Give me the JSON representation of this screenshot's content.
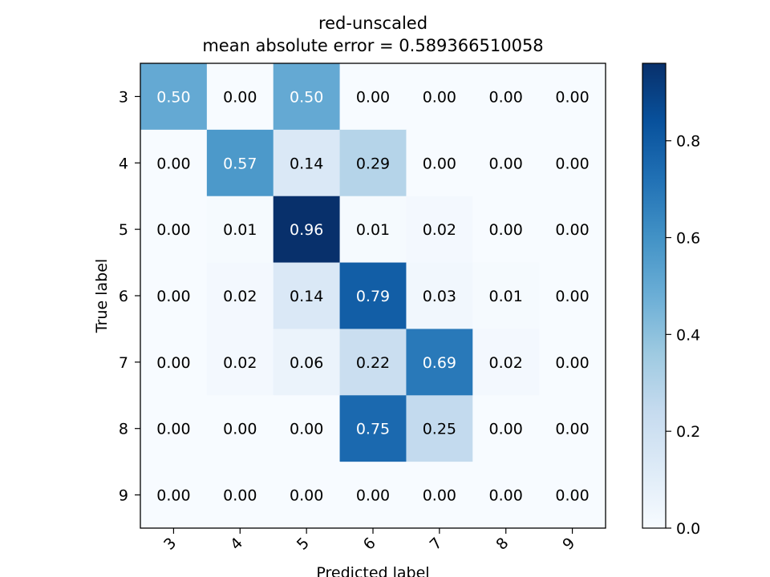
{
  "chart_data": {
    "type": "heatmap",
    "title": "red-unscaled",
    "subtitle": "mean absolute error = 0.589366510058",
    "xlabel": "Predicted label",
    "ylabel": "True label",
    "x_categories": [
      "3",
      "4",
      "5",
      "6",
      "7",
      "8",
      "9"
    ],
    "y_categories": [
      "3",
      "4",
      "5",
      "6",
      "7",
      "8",
      "9"
    ],
    "cell_label_format": "2 decimals",
    "values": [
      [
        0.5,
        0.0,
        0.5,
        0.0,
        0.0,
        0.0,
        0.0
      ],
      [
        0.0,
        0.57,
        0.14,
        0.29,
        0.0,
        0.0,
        0.0
      ],
      [
        0.0,
        0.01,
        0.96,
        0.01,
        0.02,
        0.0,
        0.0
      ],
      [
        0.0,
        0.02,
        0.14,
        0.79,
        0.03,
        0.01,
        0.0
      ],
      [
        0.0,
        0.02,
        0.06,
        0.22,
        0.69,
        0.02,
        0.0
      ],
      [
        0.0,
        0.0,
        0.0,
        0.75,
        0.25,
        0.0,
        0.0
      ],
      [
        0.0,
        0.0,
        0.0,
        0.0,
        0.0,
        0.0,
        0.0
      ]
    ],
    "colormap": "Blues",
    "colormap_stops": [
      "#f7fbff",
      "#deebf7",
      "#c6dbef",
      "#9ecae1",
      "#6baed6",
      "#4292c6",
      "#2171b5",
      "#08519c",
      "#08306b"
    ],
    "color_range": [
      0,
      0.96
    ],
    "colorbar_ticks": [
      "0.0",
      "0.2",
      "0.4",
      "0.6",
      "0.8"
    ],
    "text_light": "#ffffff",
    "text_dark": "#000000"
  }
}
